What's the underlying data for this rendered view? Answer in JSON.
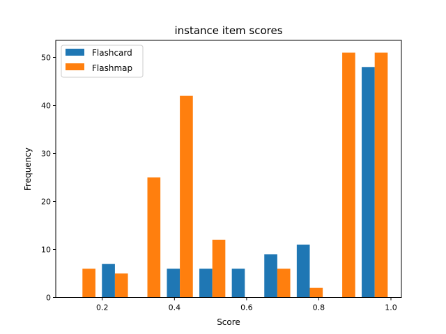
{
  "chart_data": {
    "type": "bar",
    "title": "instance item scores",
    "xlabel": "Score",
    "ylabel": "Frequency",
    "xlim": [
      0.071,
      1.029
    ],
    "ylim": [
      0,
      53.55
    ],
    "xticks": [
      0.2,
      0.4,
      0.6,
      0.8,
      1.0
    ],
    "xtick_labels": [
      "0.2",
      "0.4",
      "0.6",
      "0.8",
      "1.0"
    ],
    "yticks": [
      0,
      10,
      20,
      30,
      40,
      50
    ],
    "ytick_labels": [
      "0",
      "10",
      "20",
      "30",
      "40",
      "50"
    ],
    "bin_edges": [
      0.1,
      0.19,
      0.28,
      0.37,
      0.46,
      0.55,
      0.64,
      0.73,
      0.82,
      0.91,
      1.0
    ],
    "series": [
      {
        "name": "Flashcard",
        "color": "#1f77b4",
        "values": [
          0,
          7,
          0,
          6,
          6,
          6,
          9,
          11,
          0,
          48
        ]
      },
      {
        "name": "Flashmap",
        "color": "#ff7f0e",
        "values": [
          6,
          5,
          25,
          42,
          12,
          0,
          6,
          2,
          51,
          51
        ]
      }
    ],
    "legend": {
      "position": "top-left"
    },
    "grid": false
  }
}
